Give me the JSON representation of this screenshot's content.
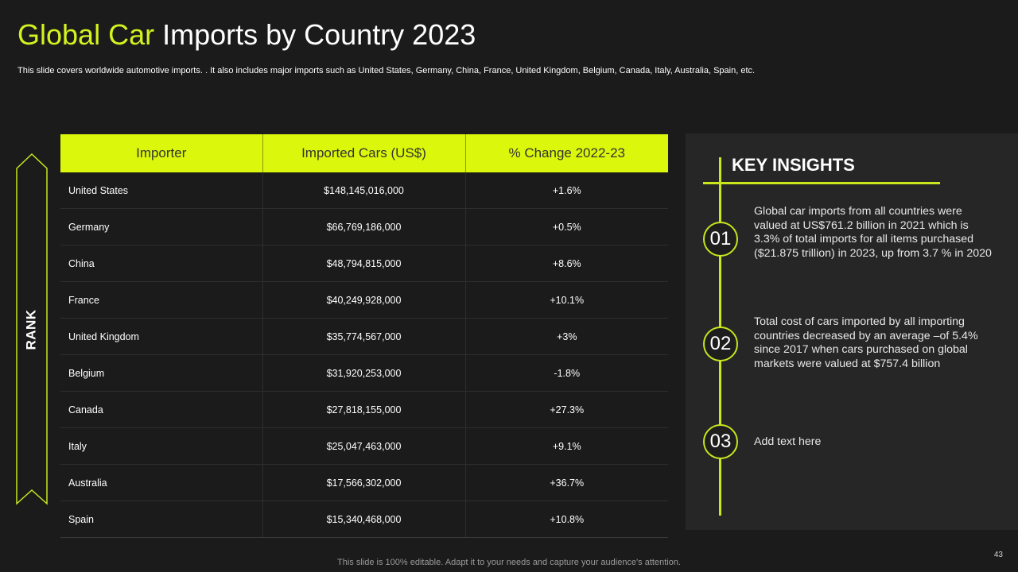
{
  "header": {
    "title_accent": "Global Car",
    "title_rest": " Imports by Country 2023",
    "subtitle": "This slide covers worldwide automotive imports. . It also includes major imports such as United States, Germany, China, France, United Kingdom, Belgium, Canada, Italy, Australia, Spain, etc."
  },
  "rank_label": "RANK",
  "table": {
    "headers": [
      "Importer",
      "Imported Cars (US$)",
      "% Change 2022-23"
    ],
    "rows": [
      [
        "United States",
        "$148,145,016,000",
        "+1.6%"
      ],
      [
        "Germany",
        "$66,769,186,000",
        "+0.5%"
      ],
      [
        "China",
        "$48,794,815,000",
        "+8.6%"
      ],
      [
        "France",
        "$40,249,928,000",
        "+10.1%"
      ],
      [
        "United Kingdom",
        "$35,774,567,000",
        "+3%"
      ],
      [
        "Belgium",
        "$31,920,253,000",
        "-1.8%"
      ],
      [
        "Canada",
        "$27,818,155,000",
        "+27.3%"
      ],
      [
        "Italy",
        "$25,047,463,000",
        "+9.1%"
      ],
      [
        "Australia",
        "$17,566,302,000",
        "+36.7%"
      ],
      [
        "Spain",
        "$15,340,468,000",
        "+10.8%"
      ]
    ]
  },
  "insights": {
    "title": "KEY INSIGHTS",
    "items": [
      {
        "number": "01",
        "text": "Global car imports from all countries were valued at US$761.2 billion in 2021 which is 3.3% of total imports for all items purchased ($21.875 trillion) in 2023, up from 3.7 % in 2020"
      },
      {
        "number": "02",
        "text": "Total cost of cars imported by all importing countries decreased by an average –of 5.4% since 2017 when cars purchased on global markets were valued at $757.4 billion"
      },
      {
        "number": "03",
        "text": "Add text here"
      }
    ]
  },
  "footer": {
    "note": "This slide is 100% editable. Adapt it to your needs and capture your audience's attention.",
    "page_number": "43"
  },
  "colors": {
    "accent": "#dbf70c",
    "background": "#1b1b1b",
    "panel": "#262626"
  }
}
